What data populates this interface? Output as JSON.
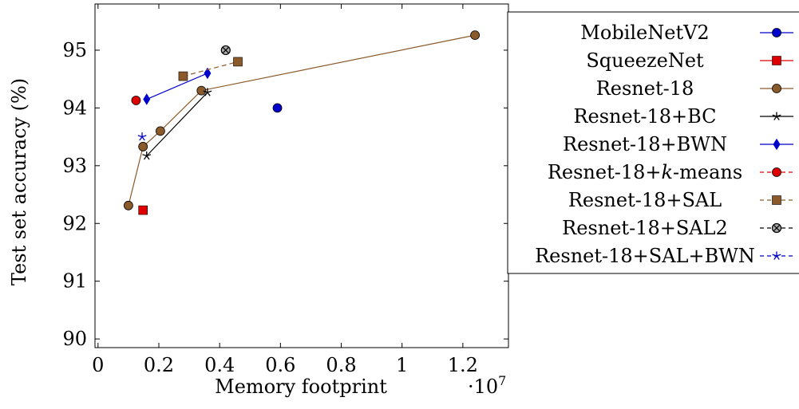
{
  "chart_data": {
    "type": "scatter",
    "xlabel": "Memory footprint",
    "ylabel": "Test set accuracy (%)",
    "x_multiplier": "·10",
    "x_multiplier_exp": "7",
    "xlim": [
      -0.01,
      1.35
    ],
    "ylim": [
      89.85,
      95.8
    ],
    "x_ticks": [
      0,
      0.2,
      0.4,
      0.6,
      0.8,
      1,
      1.2
    ],
    "x_tick_labels": [
      "0",
      "0.2",
      "0.4",
      "0.6",
      "0.8",
      "1",
      "1.2"
    ],
    "y_ticks": [
      90,
      91,
      92,
      93,
      94,
      95
    ],
    "y_tick_labels": [
      "90",
      "91",
      "92",
      "93",
      "94",
      "95"
    ],
    "legend_position": "outside right, top",
    "series": [
      {
        "name": "MobileNetV2",
        "color": "#0000cc",
        "marker": "circle",
        "line": "solid",
        "points": [
          [
            0.59,
            94.0
          ]
        ]
      },
      {
        "name": "SqueezeNet",
        "color": "#dd0000",
        "marker": "square",
        "line": "solid",
        "points": [
          [
            0.148,
            92.23
          ]
        ]
      },
      {
        "name": "Resnet-18",
        "color": "#8b5a2b",
        "marker": "circle",
        "line": "solid",
        "points": [
          [
            0.1,
            92.31
          ],
          [
            0.148,
            93.33
          ],
          [
            0.205,
            93.6
          ],
          [
            0.34,
            94.3
          ],
          [
            1.24,
            95.26
          ]
        ]
      },
      {
        "name": "Resnet-18+BC",
        "color": "#000000",
        "marker": "star",
        "line": "solid",
        "points": [
          [
            0.16,
            93.17
          ],
          [
            0.36,
            94.27
          ]
        ]
      },
      {
        "name": "Resnet-18+BWN",
        "color": "#0000cc",
        "marker": "diamond",
        "line": "solid",
        "points": [
          [
            0.16,
            94.15
          ],
          [
            0.36,
            94.6
          ]
        ]
      },
      {
        "name": "Resnet-18+",
        "name_math": "k",
        "name_suffix": "-means",
        "color": "#dd0000",
        "marker": "circle",
        "line": "dashed",
        "points": [
          [
            0.125,
            94.13
          ]
        ]
      },
      {
        "name": "Resnet-18+SAL",
        "color": "#8b5a2b",
        "marker": "square",
        "line": "dashed",
        "points": [
          [
            0.28,
            94.55
          ],
          [
            0.46,
            94.8
          ]
        ]
      },
      {
        "name": "Resnet-18+SAL2",
        "color": "#000000",
        "marker": "otimes",
        "line": "dashed",
        "points": [
          [
            0.42,
            95.0
          ]
        ]
      },
      {
        "name": "Resnet-18+SAL+BWN",
        "color": "#0000cc",
        "marker": "star",
        "line": "dashed",
        "points": [
          [
            0.145,
            93.5
          ]
        ]
      }
    ]
  }
}
